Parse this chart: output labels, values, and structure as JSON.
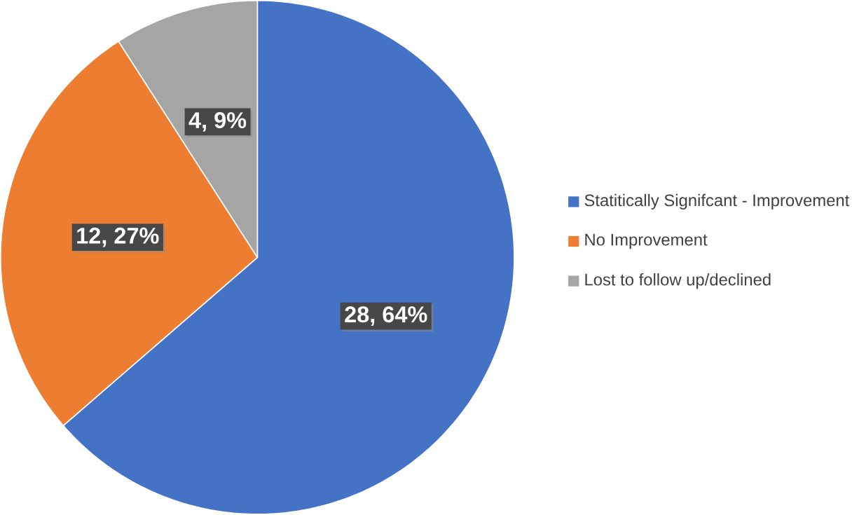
{
  "chart_data": {
    "type": "pie",
    "categories": [
      "Statitically Signifcant - Improvement",
      "No Improvement",
      "Lost to follow up/declined"
    ],
    "values": [
      28,
      12,
      4
    ],
    "colors": [
      "#4472c4",
      "#ed7d31",
      "#a5a5a5"
    ],
    "value_labels": [
      "28, 64%",
      "12, 27%",
      "4, 9%"
    ],
    "legend": "right"
  }
}
